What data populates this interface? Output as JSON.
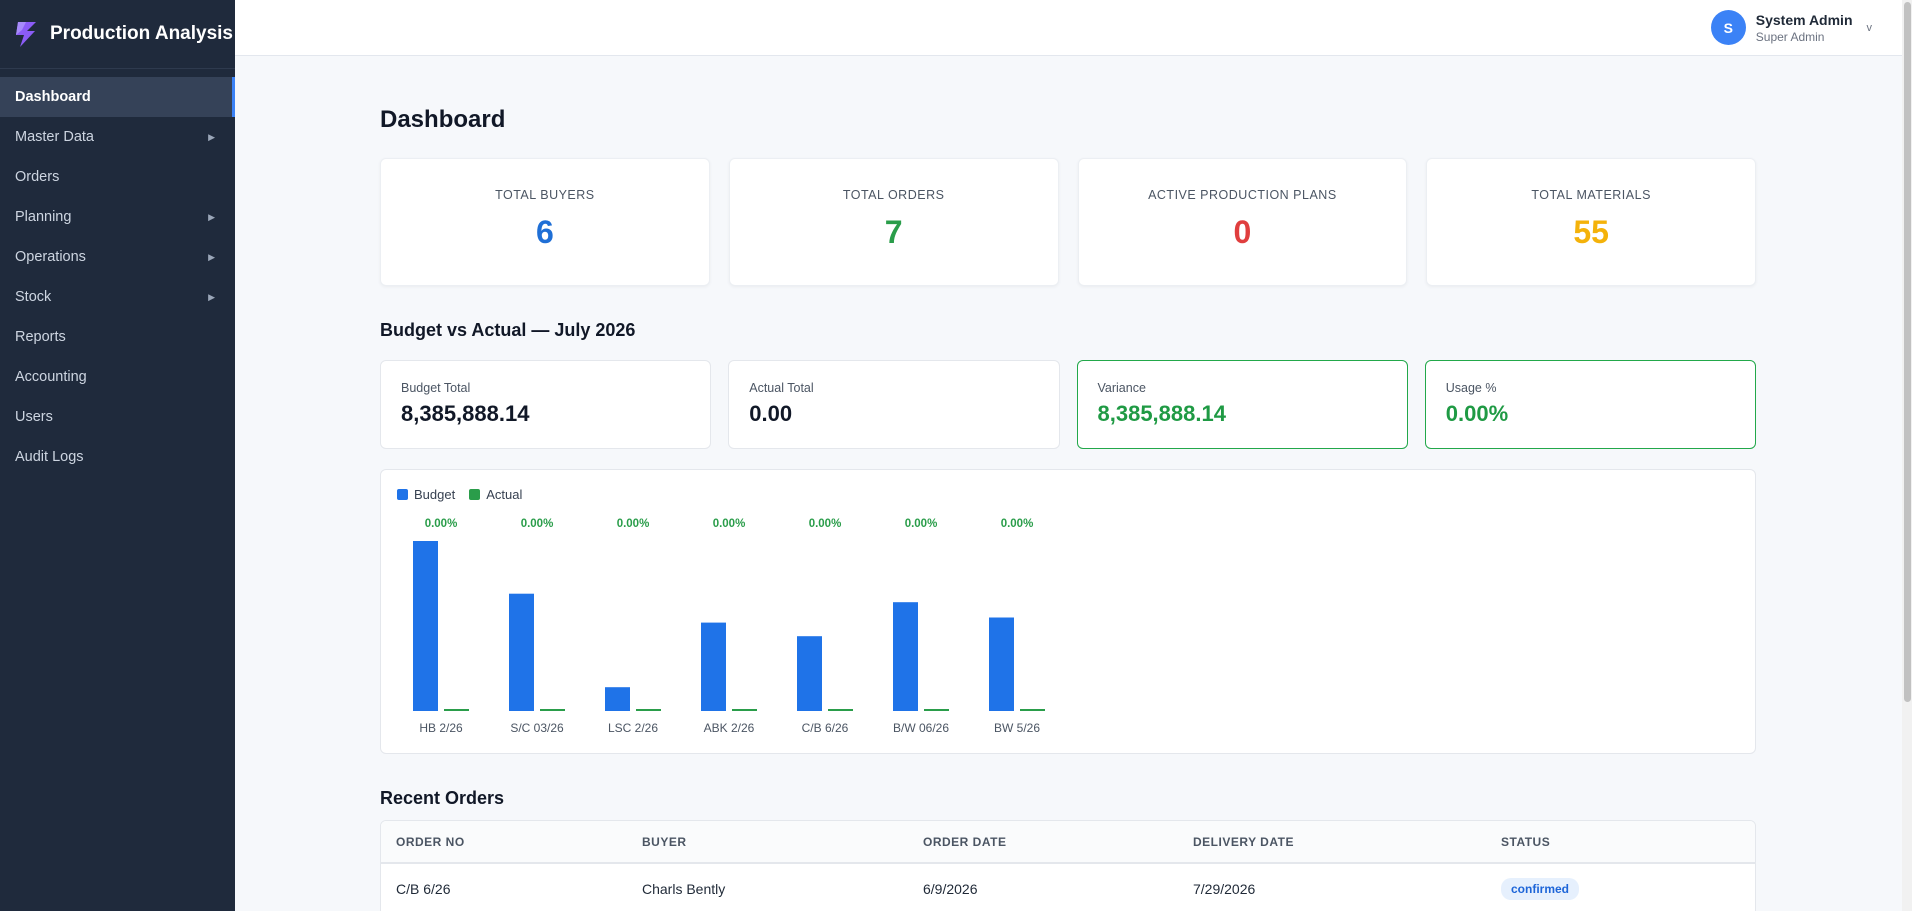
{
  "app": {
    "title": "Production Analysis"
  },
  "sidebar": {
    "items": [
      {
        "label": "Dashboard",
        "active": true,
        "has_submenu": false
      },
      {
        "label": "Master Data",
        "active": false,
        "has_submenu": true
      },
      {
        "label": "Orders",
        "active": false,
        "has_submenu": false
      },
      {
        "label": "Planning",
        "active": false,
        "has_submenu": true
      },
      {
        "label": "Operations",
        "active": false,
        "has_submenu": true
      },
      {
        "label": "Stock",
        "active": false,
        "has_submenu": true
      },
      {
        "label": "Reports",
        "active": false,
        "has_submenu": false
      },
      {
        "label": "Accounting",
        "active": false,
        "has_submenu": false
      },
      {
        "label": "Users",
        "active": false,
        "has_submenu": false
      },
      {
        "label": "Audit Logs",
        "active": false,
        "has_submenu": false
      }
    ],
    "arrow_glyph": "▶"
  },
  "user": {
    "initial": "S",
    "name": "System Admin",
    "role": "Super Admin",
    "caret": "v"
  },
  "page": {
    "title": "Dashboard"
  },
  "stats": [
    {
      "label": "TOTAL BUYERS",
      "value": "6",
      "color": "#1f6fd6"
    },
    {
      "label": "TOTAL ORDERS",
      "value": "7",
      "color": "#2a9d4a"
    },
    {
      "label": "ACTIVE PRODUCTION PLANS",
      "value": "0",
      "color": "#e03e3e"
    },
    {
      "label": "TOTAL MATERIALS",
      "value": "55",
      "color": "#f4b20a"
    }
  ],
  "budget": {
    "section_title": "Budget vs Actual — July 2026",
    "cards": [
      {
        "label": "Budget Total",
        "value": "8,385,888.14",
        "highlight": false
      },
      {
        "label": "Actual Total",
        "value": "0.00",
        "highlight": false
      },
      {
        "label": "Variance",
        "value": "8,385,888.14",
        "highlight": true
      },
      {
        "label": "Usage %",
        "value": "0.00%",
        "highlight": true
      }
    ]
  },
  "colors": {
    "budget": "#1f73e8",
    "actual": "#2a9d4a",
    "accent": "#3b82f6",
    "sidebar_bg": "#1f2a3c"
  },
  "chart_data": {
    "type": "bar",
    "legend": [
      "Budget",
      "Actual"
    ],
    "categories": [
      "HB 2/26",
      "S/C 03/26",
      "LSC 2/26",
      "ABK 2/26",
      "C/B 6/26",
      "B/W 06/26",
      "BW 5/26"
    ],
    "series": [
      {
        "name": "Budget",
        "values": [
          100,
          69,
          14,
          52,
          44,
          64,
          55
        ]
      },
      {
        "name": "Actual",
        "values": [
          0,
          0,
          0,
          0,
          0,
          0,
          0
        ]
      }
    ],
    "data_labels": [
      "0.00%",
      "0.00%",
      "0.00%",
      "0.00%",
      "0.00%",
      "0.00%",
      "0.00%"
    ],
    "ylim": [
      0,
      100
    ],
    "grid": false,
    "legend_position": "top-left"
  },
  "orders": {
    "section_title": "Recent Orders",
    "columns": [
      "ORDER NO",
      "BUYER",
      "ORDER DATE",
      "DELIVERY DATE",
      "STATUS"
    ],
    "rows": [
      {
        "order_no": "C/B 6/26",
        "buyer": "Charls Bently",
        "order_date": "6/9/2026",
        "delivery_date": "7/29/2026",
        "status": "confirmed"
      }
    ]
  }
}
